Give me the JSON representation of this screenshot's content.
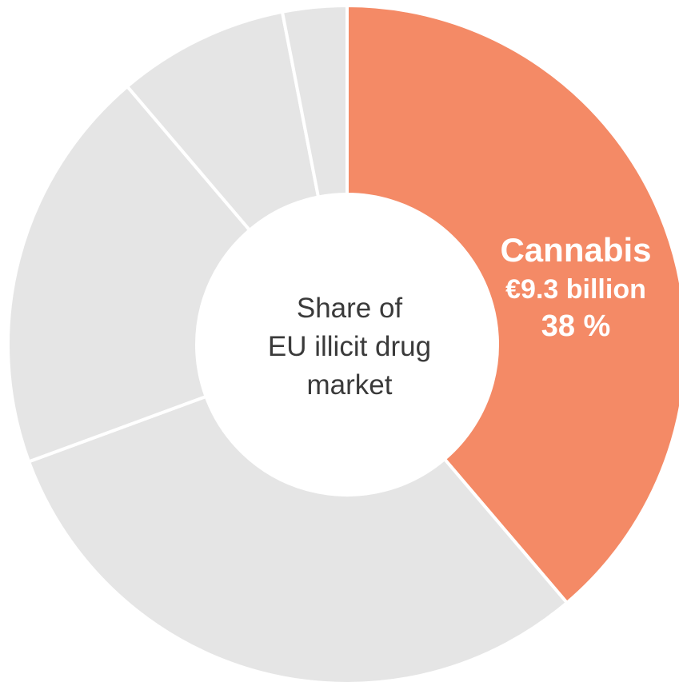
{
  "chart_data": {
    "type": "pie",
    "variant": "donut",
    "center_title_lines": [
      "Share of",
      "EU illicit drug",
      "market"
    ],
    "slices": [
      {
        "label": "Cannabis",
        "value_text": "€9.3 billion",
        "percent": 38,
        "percent_text": "38 %",
        "color": "#F48A66",
        "highlighted": true
      },
      {
        "label": "",
        "percent": 30,
        "color": "#E5E5E5",
        "highlighted": false
      },
      {
        "label": "",
        "percent": 19,
        "color": "#E5E5E5",
        "highlighted": false
      },
      {
        "label": "",
        "percent": 8,
        "color": "#E5E5E5",
        "highlighted": false
      },
      {
        "label": "",
        "percent": 3,
        "color": "#E5E5E5",
        "highlighted": false
      }
    ],
    "start_angle": "12 o'clock",
    "direction": "clockwise"
  },
  "colors": {
    "highlight": "#F48A66",
    "other": "#E5E5E5",
    "separator": "#ffffff",
    "center_text": "#3a3a3a"
  }
}
